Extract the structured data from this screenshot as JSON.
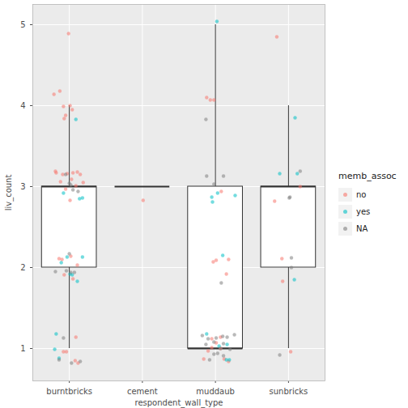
{
  "chart_data": {
    "type": "box",
    "x_label": "respondent_wall_type",
    "y_label": "liv_count",
    "legend_title": "memb_assoc",
    "xlim": [
      0.5,
      4.5
    ],
    "xticks": [
      {
        "value": 1,
        "label": "burntbricks"
      },
      {
        "value": 2,
        "label": "cement"
      },
      {
        "value": 3,
        "label": "muddaub"
      },
      {
        "value": 4,
        "label": "sunbricks"
      }
    ],
    "ylim": [
      0.6,
      5.25
    ],
    "yticks": [
      1,
      2,
      3,
      4,
      5
    ],
    "grid": true,
    "legend": "right",
    "boxes": [
      {
        "x": 1,
        "lower": 1,
        "q1": 2,
        "median": 3,
        "q3": 3,
        "upper": 4
      },
      {
        "x": 2,
        "lower": 3,
        "q1": 3,
        "median": 3,
        "q3": 3,
        "upper": 3
      },
      {
        "x": 3,
        "lower": 1,
        "q1": 1,
        "median": 1,
        "q3": 3,
        "upper": 5
      },
      {
        "x": 4,
        "lower": 1,
        "q1": 2,
        "median": 3,
        "q3": 3,
        "upper": 4
      }
    ],
    "series": [
      {
        "name": "no",
        "color": "#F8766D",
        "marker": "circle",
        "x": [
          0.99,
          0.79,
          0.87,
          1.01,
          0.92,
          0.95,
          0.93,
          1.04,
          0.81,
          0.82,
          0.91,
          0.97,
          1.05,
          1.11,
          1.15,
          0.88,
          1.03,
          1.19,
          0.95,
          1.09,
          1.01,
          0.86,
          0.9,
          1.02,
          1.11,
          0.93,
          1.05,
          1.09,
          1.08,
          1.12,
          0.92,
          0.96,
          2.01,
          2.88,
          2.93,
          2.98,
          3.08,
          2.97,
          3.01,
          3.18,
          3.15,
          2.84,
          2.9,
          2.95,
          3.07,
          3.12,
          3.18,
          3.01,
          2.95,
          3.07,
          3.84,
          3.81,
          3.91,
          3.92,
          4.03,
          4.16
        ],
        "values": [
          4.89,
          4.14,
          4.18,
          4.0,
          3.99,
          3.88,
          3.84,
          3.95,
          3.19,
          3.17,
          3.15,
          3.16,
          3.17,
          3.18,
          3.15,
          3.06,
          3.09,
          3.05,
          2.97,
          3.01,
          2.83,
          2.11,
          2.1,
          2.14,
          2.03,
          1.91,
          1.86,
          1.14,
          0.85,
          0.82,
          0.96,
          0.96,
          2.83,
          4.1,
          4.07,
          4.07,
          2.94,
          2.07,
          2.09,
          2.1,
          1.92,
          0.87,
          0.97,
          1.01,
          1.0,
          0.87,
          0.84,
          1.07,
          1.12,
          1.14,
          4.85,
          2.82,
          2.11,
          1.83,
          0.96,
          3.0
        ]
      },
      {
        "name": "yes",
        "color": "#00BFC4",
        "marker": "circle",
        "x": [
          1.09,
          1.14,
          1.18,
          0.92,
          1.18,
          0.97,
          0.89,
          1.11,
          1.04,
          0.82,
          0.8,
          0.86,
          1.01,
          3.02,
          2.95,
          3.03,
          3.27,
          3.1,
          2.88,
          3.16,
          3.19,
          2.96,
          3.15,
          3.05,
          4.09,
          3.88,
          4.12,
          4.08
        ],
        "values": [
          3.83,
          2.85,
          2.86,
          2.92,
          2.13,
          2.13,
          2.06,
          1.83,
          1.91,
          1.18,
          0.99,
          0.88,
          1.92,
          5.04,
          2.87,
          2.92,
          2.89,
          2.15,
          1.18,
          1.05,
          0.86,
          2.81,
          0.86,
          1.03,
          3.85,
          3.16,
          3.16,
          1.85
        ]
      },
      {
        "name": "NA",
        "color": "#7F7F7F",
        "marker": "circle",
        "x": [
          0.95,
          1.0,
          1.02,
          1.12,
          1.05,
          1.0,
          0.81,
          0.96,
          1.02,
          1.07,
          0.92,
          0.86,
          1.03,
          1.15,
          2.87,
          2.88,
          3.11,
          2.98,
          3.08,
          2.82,
          2.9,
          3.01,
          3.1,
          3.26,
          2.87,
          2.98,
          3.11,
          3.16,
          2.98,
          3.07,
          3.2,
          2.92,
          3.11,
          3.03,
          4.16,
          4.02,
          4.04,
          3.88,
          4.01,
          4.04
        ],
        "values": [
          3.15,
          3.04,
          3.02,
          2.94,
          2.96,
          2.17,
          1.95,
          1.96,
          1.94,
          1.94,
          1.13,
          0.86,
          0.82,
          0.84,
          3.83,
          3.13,
          3.13,
          3.03,
          1.81,
          1.16,
          1.12,
          1.13,
          1.15,
          1.17,
          1.05,
          1.08,
          1.06,
          1.14,
          0.93,
          1.0,
          0.99,
          0.86,
          0.91,
          0.94,
          3.19,
          2.87,
          2.12,
          0.92,
          2.86,
          2.0
        ]
      }
    ]
  }
}
